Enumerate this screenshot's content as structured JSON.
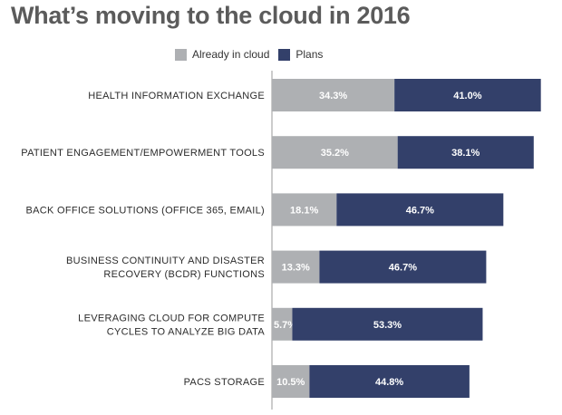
{
  "chart_data": {
    "type": "bar",
    "orientation": "horizontal",
    "stacked": true,
    "title": "What’s moving to the cloud in 2016",
    "xlabel": "",
    "ylabel": "",
    "xlim": [
      0,
      80
    ],
    "legend_position": "top",
    "colors": {
      "already": "#aeb0b3",
      "plans": "#33406a",
      "axis": "#9a9a9a"
    },
    "categories": [
      [
        "HEALTH INFORMATION EXCHANGE"
      ],
      [
        "PATIENT ENGAGEMENT/EMPOWERMENT TOOLS"
      ],
      [
        "BACK OFFICE SOLUTIONS (OFFICE 365, EMAIL)"
      ],
      [
        "BUSINESS CONTINUITY AND DISASTER",
        "RECOVERY (BCDR) FUNCTIONS"
      ],
      [
        "LEVERAGING CLOUD FOR COMPUTE",
        "CYCLES TO ANALYZE BIG DATA"
      ],
      [
        "PACS STORAGE"
      ]
    ],
    "series": [
      {
        "name": "Already in cloud",
        "values": [
          34.3,
          35.2,
          18.1,
          13.3,
          5.7,
          10.5
        ],
        "labels": [
          "34.3%",
          "35.2%",
          "18.1%",
          "13.3%",
          "5.7%",
          "10.5%"
        ]
      },
      {
        "name": "Plans",
        "values": [
          41.0,
          38.1,
          46.7,
          46.7,
          53.3,
          44.8
        ],
        "labels": [
          "41.0%",
          "38.1%",
          "46.7%",
          "46.7%",
          "53.3%",
          "44.8%"
        ]
      }
    ]
  }
}
